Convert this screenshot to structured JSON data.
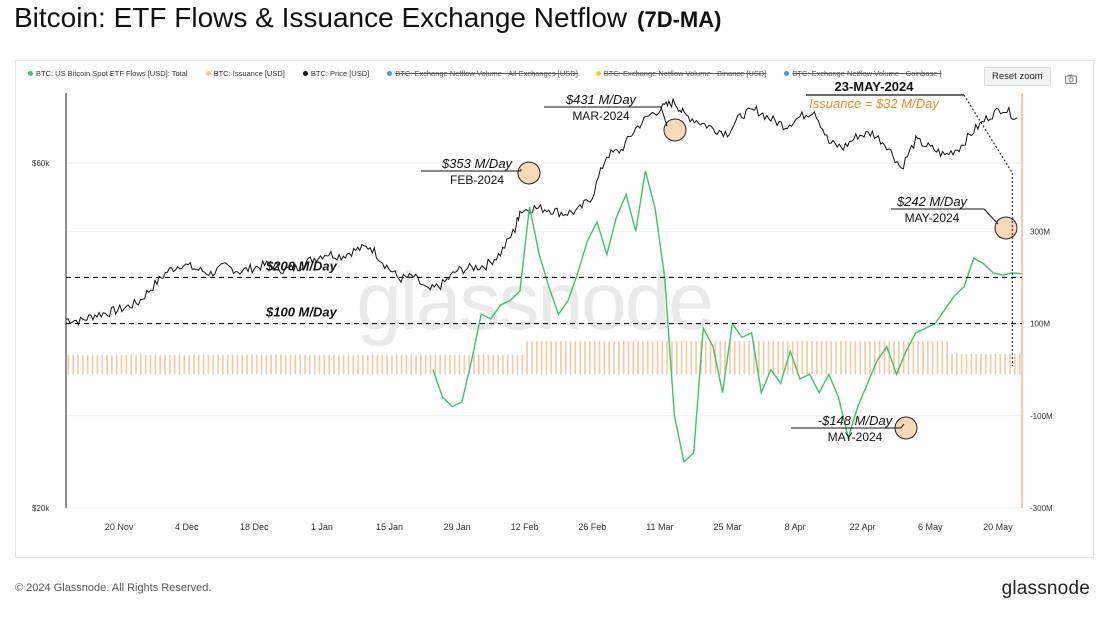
{
  "page": {
    "title": "Bitcoin: ETF Flows & Issuance Exchange Netflow",
    "title_suffix": "(7D-MA)",
    "copyright": "© 2024 Glassnode. All Rights Reserved.",
    "brand": "glassnode",
    "watermark": "glassnode",
    "reset_zoom": "Reset zoom",
    "camera_icon": "camera-icon"
  },
  "legend": [
    {
      "label": "BTC: US Bitcoin Spot ETF Flows [USD]: Total",
      "color": "#35c46a",
      "active": true
    },
    {
      "label": "BTC: Issuance [USD]",
      "color": "#f5c9a1",
      "active": true
    },
    {
      "label": "BTC: Price [USD]",
      "color": "#111111",
      "active": true
    },
    {
      "label": "BTC: Exchange Netflow Volume - All Exchanges [USD]",
      "color": "#3f9bd9",
      "active": false
    },
    {
      "label": "BTC: Exchange Netflow Volume - Binance [USD]",
      "color": "#f2d11c",
      "active": false
    },
    {
      "label": "BTC: Exchange Netflow Volume - Coinbase [",
      "color": "#3f9bd9",
      "active": false
    }
  ],
  "chart_data": {
    "type": "line",
    "colors": {
      "etf": "#3cc46a",
      "issuance": "#f5c9a1",
      "price": "#111111",
      "annotation_orange": "#f08a24"
    },
    "x_ticks": [
      "20 Nov",
      "4 Dec",
      "18 Dec",
      "1 Jan",
      "15 Jan",
      "29 Jan",
      "12 Feb",
      "26 Feb",
      "11 Mar",
      "25 Mar",
      "8 Apr",
      "22 Apr",
      "6 May",
      "20 May"
    ],
    "x_tick_days": [
      20,
      34,
      48,
      62,
      76,
      90,
      104,
      118,
      132,
      146,
      160,
      174,
      188,
      202
    ],
    "x_range": [
      9,
      207
    ],
    "left_axis": {
      "scale": "log",
      "ticks": [
        "$60k",
        "$20k"
      ],
      "tick_values": [
        60000,
        20000
      ],
      "range": [
        20000,
        75000
      ]
    },
    "right_axis": {
      "ticks": [
        "300M",
        "100M",
        "-100M",
        "-300M"
      ],
      "tick_values": [
        300,
        100,
        -100,
        -300
      ],
      "range": [
        -300,
        600
      ]
    },
    "price": {
      "x": [
        9,
        12,
        15,
        18,
        21,
        24,
        27,
        30,
        33,
        36,
        39,
        42,
        45,
        48,
        51,
        54,
        57,
        60,
        63,
        66,
        69,
        72,
        75,
        78,
        81,
        84,
        87,
        90,
        93,
        96,
        99,
        102,
        103,
        106,
        109,
        112,
        115,
        118,
        121,
        124,
        127,
        130,
        133,
        135,
        137,
        140,
        143,
        146,
        149,
        152,
        155,
        158,
        161,
        164,
        167,
        170,
        173,
        176,
        179,
        182,
        185,
        188,
        191,
        194,
        197,
        200,
        203,
        206
      ],
      "y": [
        36500,
        36300,
        37000,
        37300,
        37800,
        38500,
        40500,
        42500,
        43500,
        42800,
        42200,
        43200,
        42500,
        43000,
        43500,
        42700,
        43000,
        44200,
        45000,
        44600,
        45500,
        46000,
        43500,
        41500,
        41800,
        39900,
        40800,
        42600,
        43000,
        43300,
        45000,
        48600,
        51500,
        52000,
        51800,
        51100,
        51500,
        54000,
        61500,
        62500,
        67000,
        70000,
        71800,
        73000,
        70000,
        68500,
        67000,
        66000,
        70000,
        71000,
        69000,
        67500,
        69500,
        71000,
        64000,
        63000,
        65500,
        66000,
        63500,
        59000,
        64500,
        63000,
        61500,
        63000,
        66500,
        69500,
        71500,
        69300
      ]
    },
    "etf": {
      "x": [
        85,
        87,
        89,
        91,
        93,
        95,
        97,
        99,
        101,
        103,
        105,
        107,
        109,
        111,
        113,
        115,
        117,
        119,
        121,
        123,
        125,
        127,
        129,
        131,
        133,
        135,
        137,
        139,
        141,
        143,
        145,
        147,
        149,
        151,
        153,
        155,
        157,
        159,
        161,
        163,
        165,
        167,
        169,
        171,
        173,
        175,
        177,
        179,
        181,
        183,
        185,
        187,
        189,
        191,
        193,
        195,
        197,
        199,
        201,
        203,
        205,
        207
      ],
      "y": [
        0,
        -60,
        -80,
        -70,
        20,
        120,
        110,
        140,
        150,
        170,
        353,
        250,
        180,
        120,
        150,
        210,
        280,
        320,
        250,
        330,
        380,
        300,
        431,
        350,
        200,
        -100,
        -200,
        -180,
        90,
        50,
        -50,
        100,
        70,
        80,
        -50,
        0,
        -30,
        40,
        -20,
        -10,
        -50,
        -10,
        -60,
        -148,
        -80,
        -30,
        20,
        50,
        -10,
        40,
        80,
        90,
        100,
        130,
        160,
        180,
        242,
        230,
        210,
        205,
        210,
        208
      ]
    },
    "issuance": {
      "level_mid": 32,
      "level_high": 62,
      "level_low": 34
    },
    "reference_lines": [
      {
        "label": "$200 M/Day",
        "value": 200
      },
      {
        "label": "$100 M/Day",
        "value": 100
      }
    ],
    "annotations": [
      {
        "value": "$431 M/Day",
        "date": "MAR-2024",
        "x": 130,
        "y": 431
      },
      {
        "value": "$353 M/Day",
        "date": "FEB-2024",
        "x": 104,
        "y": 353
      },
      {
        "value": "$242 M/Day",
        "date": "MAY-2024",
        "x": 204,
        "y": 242
      },
      {
        "value": "-$148 M/Day",
        "date": "MAY-2024",
        "x": 182,
        "y": -148
      }
    ],
    "highlight": {
      "date": "23-MAY-2024",
      "note": "Issuance = $32 M/Day",
      "x": 205
    }
  }
}
